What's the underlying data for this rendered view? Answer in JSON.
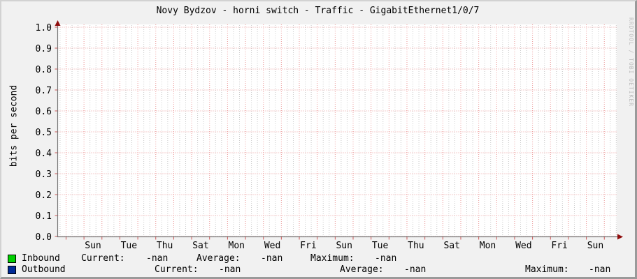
{
  "title": "Novy Bydzov - horni switch - Traffic - GigabitEthernet1/0/7",
  "watermark": "RRDTOOL / TOBI OETIKER",
  "colors": {
    "inbound": "#00cf00",
    "outbound": "#002a97",
    "grid_major": "#ec9c9c",
    "grid_minor": "#c9c9c9",
    "axis": "#737373",
    "arrow": "#8f0d0d",
    "tick": "#cc5555",
    "plot_background": "#ffffff",
    "image_background": "#f1f1f1",
    "watermark_text": "#bcbcbc"
  },
  "chart_data": {
    "type": "line",
    "title": "Novy Bydzov - horni switch - Traffic - GigabitEthernet1/0/7",
    "xlabel": "",
    "ylabel": "bits per second",
    "ylim": [
      0.0,
      1.0
    ],
    "y_tick_labels": [
      "1.0",
      "0.9",
      "0.8",
      "0.7",
      "0.6",
      "0.5",
      "0.4",
      "0.3",
      "0.2",
      "0.1",
      "0.0"
    ],
    "x_tick_labels": [
      "Sun",
      "Tue",
      "Thu",
      "Sat",
      "Mon",
      "Wed",
      "Fri",
      "Sun",
      "Tue",
      "Thu",
      "Sat",
      "Mon",
      "Wed",
      "Fri",
      "Sun"
    ],
    "grid": true,
    "legend_position": "bottom",
    "series": [
      {
        "name": "Inbound",
        "color": "#00cf00",
        "values": []
      },
      {
        "name": "Outbound",
        "color": "#002a97",
        "values": []
      }
    ]
  },
  "legend": {
    "inbound": {
      "label": "Inbound",
      "current_label": "Current:",
      "current_value": "-nan",
      "average_label": "Average:",
      "average_value": "-nan",
      "maximum_label": "Maximum:",
      "maximum_value": "-nan"
    },
    "outbound": {
      "label": "Outbound",
      "current_label": "Current:",
      "current_value": "-nan",
      "average_label": "Average:",
      "average_value": "-nan",
      "maximum_label": "Maximum:",
      "maximum_value": "-nan"
    }
  }
}
